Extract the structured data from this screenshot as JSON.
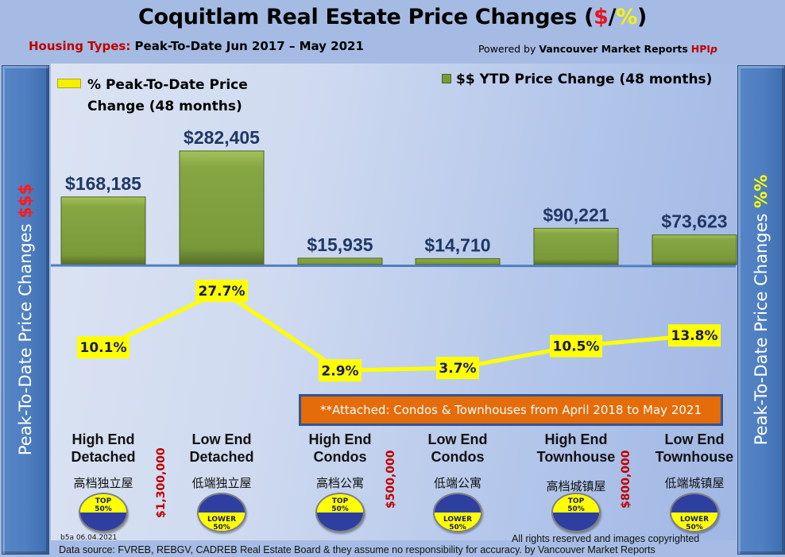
{
  "header": {
    "title_main": "Coquitlam Real Estate Price Changes (",
    "title_dollar": "$",
    "title_slash": "/",
    "title_pct": "%",
    "title_close": ")",
    "subtitle_label": "Housing Types:",
    "subtitle_text": " Peak-To-Date Jun 2017 – May 2021",
    "powered_prefix": "Powered by ",
    "powered_brand": "Vancouver Market Reports",
    "powered_hpi": "HPI",
    "powered_p": "p"
  },
  "side_labels": {
    "left_text": "Peak-To-Date Price Changes ",
    "left_symbol": "$$$",
    "right_text": "Peak-To-Date  Price  Changes  ",
    "right_symbol": "%%"
  },
  "legend": {
    "pct_line1": "% Peak-To-Date Price",
    "pct_line2": "Change (48 months)",
    "usd": "$$ YTD Price Change (48 months)"
  },
  "note": "**Attached: Condos & Townhouses from April 2018 to May 2021",
  "categories": [
    {
      "name_line1": "High End",
      "name_line2": "Detached",
      "chinese": "高档独立屋",
      "badge_line1": "TOP",
      "badge_line2": "50%",
      "badge_type": "top"
    },
    {
      "name_line1": "Low End",
      "name_line2": "Detached",
      "chinese": "低端独立屋",
      "badge_line1": "LOWER",
      "badge_line2": "50%",
      "badge_type": "lower"
    },
    {
      "name_line1": "High End",
      "name_line2": "Condos",
      "chinese": "高档公寓",
      "badge_line1": "TOP",
      "badge_line2": "50%",
      "badge_type": "top"
    },
    {
      "name_line1": "Low End",
      "name_line2": "Condos",
      "chinese": "低端公寓",
      "badge_line1": "LOWER",
      "badge_line2": "50%",
      "badge_type": "lower"
    },
    {
      "name_line1": "High End",
      "name_line2": "Townhouse",
      "chinese": "高档城镇屋",
      "badge_line1": "TOP",
      "badge_line2": "50%",
      "badge_type": "top"
    },
    {
      "name_line1": "Low End",
      "name_line2": "Townhouse",
      "chinese": "低端城镇屋",
      "badge_line1": "LOWER",
      "badge_line2": "50%",
      "badge_type": "lower"
    }
  ],
  "thresholds": [
    "$1,300,000",
    "$500,000",
    "$800,000"
  ],
  "footer": {
    "version": "b5a 06.04.2021",
    "rights": "All rights reserved and  images copyrighted",
    "source": "Data source: FVREB, REBGV, CADREB Real Estate Board & they assume no responsibility for accuracy. by Vancouver Market Reports"
  },
  "colors": {
    "bar": "#7a9a3a",
    "line": "#ffff00",
    "baseline": "#4f7fc1",
    "label_text": "#1f3864"
  },
  "chart_data": {
    "type": "bar",
    "title": "Coquitlam Real Estate Price Changes ($/%)",
    "categories": [
      "High End Detached",
      "Low End Detached",
      "High End Condos",
      "Low End Condos",
      "High End Townhouse",
      "Low End Townhouse"
    ],
    "series": [
      {
        "name": "$$ YTD Price Change (48 months)",
        "type": "bar",
        "values": [
          168185,
          282405,
          15935,
          14710,
          90221,
          73623
        ],
        "labels": [
          "$168,185",
          "$282,405",
          "$15,935",
          "$14,710",
          "$90,221",
          "$73,623"
        ]
      },
      {
        "name": "% Peak-To-Date Price Change (48 months)",
        "type": "line",
        "values": [
          10.1,
          27.7,
          2.9,
          3.7,
          10.5,
          13.8
        ],
        "labels": [
          "10.1%",
          "27.7%",
          "2.9%",
          "3.7%",
          "10.5%",
          "13.8%"
        ]
      }
    ],
    "ylabel_left": "Peak-To-Date Price Changes $$$",
    "ylabel_right": "Peak-To-Date Price Changes %%",
    "bar_ylim": [
      0,
      300000
    ],
    "line_ylim": [
      0,
      30
    ],
    "grid": false,
    "legend": [
      "top-left",
      "top-right"
    ]
  }
}
